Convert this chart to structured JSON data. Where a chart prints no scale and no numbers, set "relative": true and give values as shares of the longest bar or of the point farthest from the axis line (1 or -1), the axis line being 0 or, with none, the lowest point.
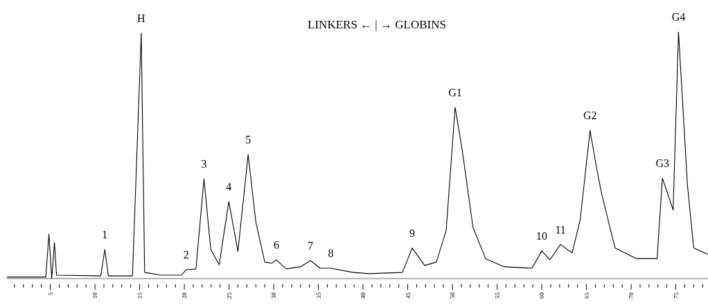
{
  "chart_data": {
    "type": "line",
    "title": "LINKERS ← | → GLOBINS",
    "relative": true,
    "color": "#000000",
    "marker": "none",
    "line_style": "solid",
    "xlim": [
      0.15,
      78.6
    ],
    "x": [
      0.15,
      4.5,
      4.85,
      5.16,
      5.47,
      5.7,
      10.65,
      11.1,
      11.5,
      14.2,
      15.18,
      15.56,
      17.4,
      19.7,
      20.2,
      21.3,
      22.2,
      22.96,
      23.9,
      24.98,
      26.0,
      27.14,
      28.0,
      29.0,
      29.8,
      30.3,
      31.4,
      33.0,
      34.1,
      35.2,
      36.4,
      38.9,
      40.7,
      44.4,
      45.5,
      46.9,
      48.2,
      49.3,
      50.3,
      51.1,
      52.3,
      53.7,
      55.8,
      58.9,
      60.0,
      60.9,
      62.1,
      63.4,
      64.3,
      65.4,
      66.1,
      66.7,
      68.2,
      70.6,
      72.9,
      73.5,
      74.7,
      75.3,
      76.3,
      77.0,
      78.6
    ],
    "values": [
      0.006,
      0.006,
      0.18,
      0,
      0.146,
      0.014,
      0.011,
      0.118,
      0.011,
      0.011,
      0.995,
      0.025,
      0.014,
      0.014,
      0.036,
      0.039,
      0.404,
      0.118,
      0.056,
      0.312,
      0.11,
      0.503,
      0.23,
      0.067,
      0.062,
      0.076,
      0.039,
      0.048,
      0.073,
      0.042,
      0.042,
      0.025,
      0.02,
      0.025,
      0.124,
      0.053,
      0.067,
      0.194,
      0.694,
      0.52,
      0.208,
      0.081,
      0.048,
      0.042,
      0.112,
      0.076,
      0.138,
      0.104,
      0.239,
      0.601,
      0.455,
      0.343,
      0.124,
      0.081,
      0.081,
      0.407,
      0.278,
      1,
      0.379,
      0.124,
      0.098
    ],
    "xticks": [
      {
        "value": 1,
        "label": null
      },
      {
        "value": 2,
        "label": null
      },
      {
        "value": 3,
        "label": null
      },
      {
        "value": 4,
        "label": null
      },
      5,
      {
        "value": 6,
        "label": null
      },
      {
        "value": 7,
        "label": null
      },
      {
        "value": 8,
        "label": null
      },
      {
        "value": 9,
        "label": null
      },
      10,
      {
        "value": 11,
        "label": null
      },
      {
        "value": 12,
        "label": null
      },
      {
        "value": 13,
        "label": null
      },
      {
        "value": 14,
        "label": null
      },
      15,
      {
        "value": 16,
        "label": null
      },
      {
        "value": 17,
        "label": null
      },
      {
        "value": 18,
        "label": null
      },
      {
        "value": 19,
        "label": null
      },
      20,
      {
        "value": 21,
        "label": null
      },
      {
        "value": 22,
        "label": null
      },
      {
        "value": 23,
        "label": null
      },
      {
        "value": 24,
        "label": null
      },
      25,
      {
        "value": 26,
        "label": null
      },
      {
        "value": 27,
        "label": null
      },
      {
        "value": 28,
        "label": null
      },
      {
        "value": 29,
        "label": null
      },
      30,
      {
        "value": 31,
        "label": null
      },
      {
        "value": 32,
        "label": null
      },
      {
        "value": 33,
        "label": null
      },
      {
        "value": 34,
        "label": null
      },
      35,
      {
        "value": 36,
        "label": null
      },
      {
        "value": 37,
        "label": null
      },
      {
        "value": 38,
        "label": null
      },
      {
        "value": 39,
        "label": null
      },
      40,
      {
        "value": 41,
        "label": null
      },
      {
        "value": 42,
        "label": null
      },
      {
        "value": 43,
        "label": null
      },
      {
        "value": 44,
        "label": null
      },
      45,
      {
        "value": 46,
        "label": null
      },
      {
        "value": 47,
        "label": null
      },
      {
        "value": 48,
        "label": null
      },
      {
        "value": 49,
        "label": null
      },
      50,
      {
        "value": 51,
        "label": null
      },
      {
        "value": 52,
        "label": null
      },
      {
        "value": 53,
        "label": null
      },
      {
        "value": 54,
        "label": null
      },
      55,
      {
        "value": 56,
        "label": null
      },
      {
        "value": 57,
        "label": null
      },
      {
        "value": 58,
        "label": null
      },
      {
        "value": 59,
        "label": null
      },
      60,
      {
        "value": 61,
        "label": null
      },
      {
        "value": 62,
        "label": null
      },
      {
        "value": 63,
        "label": null
      },
      {
        "value": 64,
        "label": null
      },
      65,
      {
        "value": 66,
        "label": null
      },
      {
        "value": 67,
        "label": null
      },
      {
        "value": 68,
        "label": null
      },
      {
        "value": 69,
        "label": null
      },
      70,
      {
        "value": 71,
        "label": null
      },
      {
        "value": 72,
        "label": null
      },
      {
        "value": 73,
        "label": null
      },
      {
        "value": 74,
        "label": null
      },
      75,
      {
        "value": 76,
        "label": null
      },
      {
        "value": 77,
        "label": null
      },
      {
        "value": 78,
        "label": null
      }
    ],
    "annotations": [
      {
        "text": "1",
        "x": 11.1,
        "y": 0.118
      },
      {
        "text": "H",
        "x": 15.18,
        "y": 0.995
      },
      {
        "text": "2",
        "x": 20.2,
        "y": 0.036
      },
      {
        "text": "3",
        "x": 22.2,
        "y": 0.404
      },
      {
        "text": "4",
        "x": 24.98,
        "y": 0.312
      },
      {
        "text": "5",
        "x": 27.14,
        "y": 0.503
      },
      {
        "text": "6",
        "x": 30.3,
        "y": 0.076
      },
      {
        "text": "7",
        "x": 34.1,
        "y": 0.073
      },
      {
        "text": "8",
        "x": 36.4,
        "y": 0.042
      },
      {
        "text": "9",
        "x": 45.5,
        "y": 0.124
      },
      {
        "text": "G1",
        "x": 50.3,
        "y": 0.694
      },
      {
        "text": "10",
        "x": 60.0,
        "y": 0.112
      },
      {
        "text": "11",
        "x": 62.1,
        "y": 0.138
      },
      {
        "text": "G2",
        "x": 65.4,
        "y": 0.601
      },
      {
        "text": "G3",
        "x": 73.5,
        "y": 0.407
      },
      {
        "text": "G4",
        "x": 75.3,
        "y": 1
      }
    ]
  }
}
